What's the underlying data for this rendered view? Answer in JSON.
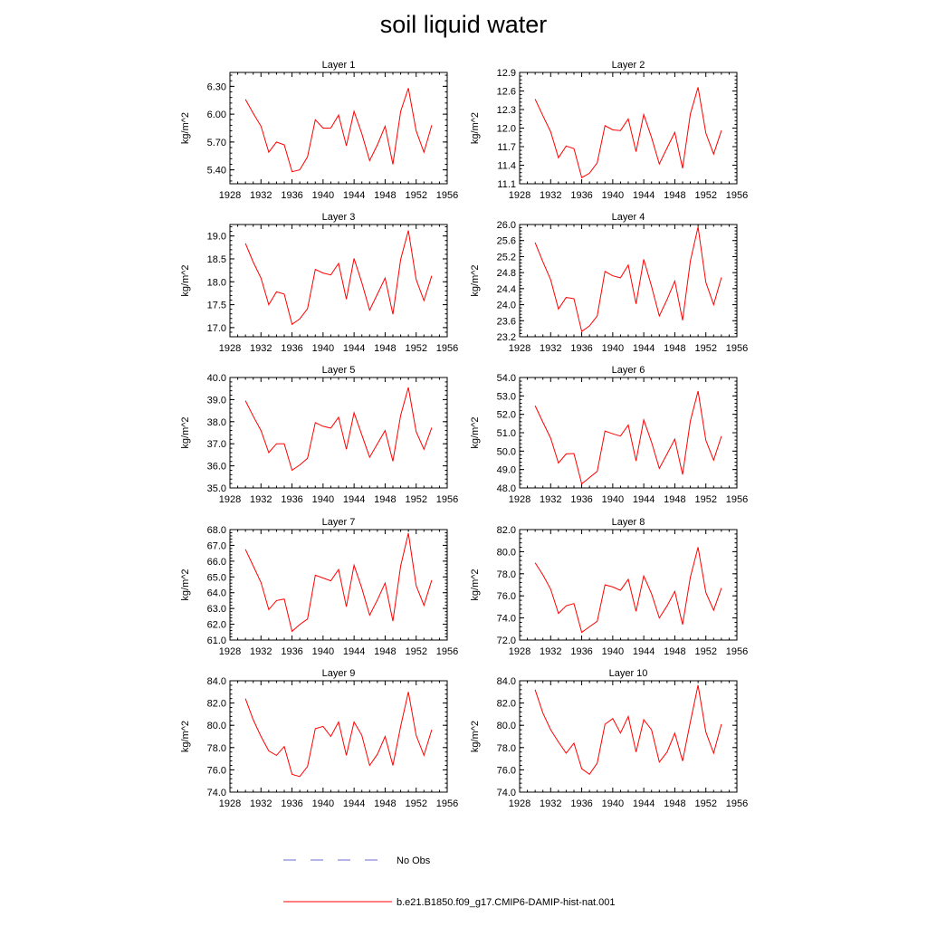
{
  "title": "soil liquid water",
  "ylabel": "kg/m^2",
  "x_ticks": [
    "1928",
    "1932",
    "1936",
    "1940",
    "1944",
    "1948",
    "1952",
    "1956"
  ],
  "legend": [
    {
      "label": "No Obs",
      "color": "#6b6bd6",
      "style": "dashed"
    },
    {
      "label": "b.e21.B1850.f09_g17.CMIP6-DAMIP-hist-nat.001",
      "color": "#ff0000",
      "style": "solid"
    }
  ],
  "chart_data": [
    {
      "type": "line",
      "title": "Layer 1",
      "ylabel": "kg/m^2",
      "xlim": [
        1928,
        1956
      ],
      "ylim": [
        5.25,
        6.45
      ],
      "y_ticks": [
        "5.40",
        "5.70",
        "6.00",
        "6.30"
      ],
      "series": [
        {
          "name": "b.e21.B1850.f09_g17.CMIP6-DAMIP-hist-nat.001",
          "color": "#ff0000",
          "x": [
            1930,
            1931,
            1932,
            1933,
            1934,
            1935,
            1936,
            1937,
            1938,
            1939,
            1940,
            1941,
            1942,
            1943,
            1944,
            1945,
            1946,
            1947,
            1948,
            1949,
            1950,
            1951,
            1952,
            1953,
            1954
          ],
          "y": [
            6.16,
            6.01,
            5.87,
            5.59,
            5.7,
            5.67,
            5.38,
            5.4,
            5.54,
            5.94,
            5.85,
            5.85,
            5.99,
            5.66,
            6.03,
            5.79,
            5.5,
            5.67,
            5.87,
            5.46,
            6.03,
            6.28,
            5.82,
            5.59,
            5.88
          ]
        }
      ]
    },
    {
      "type": "line",
      "title": "Layer 2",
      "ylabel": "kg/m^2",
      "xlim": [
        1928,
        1956
      ],
      "ylim": [
        11.1,
        12.9
      ],
      "y_ticks": [
        "11.1",
        "11.4",
        "11.7",
        "12.0",
        "12.3",
        "12.6",
        "12.9"
      ],
      "series": [
        {
          "name": "b.e21.B1850.f09_g17.CMIP6-DAMIP-hist-nat.001",
          "color": "#ff0000",
          "x": [
            1930,
            1931,
            1932,
            1933,
            1934,
            1935,
            1936,
            1937,
            1938,
            1939,
            1940,
            1941,
            1942,
            1943,
            1944,
            1945,
            1946,
            1947,
            1948,
            1949,
            1950,
            1951,
            1952,
            1953,
            1954
          ],
          "y": [
            12.47,
            12.2,
            11.94,
            11.52,
            11.71,
            11.67,
            11.2,
            11.27,
            11.44,
            12.04,
            11.97,
            11.96,
            12.15,
            11.62,
            12.22,
            11.85,
            11.42,
            11.68,
            11.93,
            11.35,
            12.23,
            12.66,
            11.92,
            11.58,
            11.96
          ]
        }
      ]
    },
    {
      "type": "line",
      "title": "Layer 3",
      "ylabel": "kg/m^2",
      "xlim": [
        1928,
        1956
      ],
      "ylim": [
        16.8,
        19.25
      ],
      "y_ticks": [
        "17.0",
        "17.5",
        "18.0",
        "18.5",
        "19.0"
      ],
      "series": [
        {
          "name": "b.e21.B1850.f09_g17.CMIP6-DAMIP-hist-nat.001",
          "color": "#ff0000",
          "x": [
            1930,
            1931,
            1932,
            1933,
            1934,
            1935,
            1936,
            1937,
            1938,
            1939,
            1940,
            1941,
            1942,
            1943,
            1944,
            1945,
            1946,
            1947,
            1948,
            1949,
            1950,
            1951,
            1952,
            1953,
            1954
          ],
          "y": [
            18.84,
            18.43,
            18.08,
            17.5,
            17.78,
            17.73,
            17.07,
            17.19,
            17.41,
            18.27,
            18.19,
            18.15,
            18.4,
            17.62,
            18.51,
            17.98,
            17.38,
            17.73,
            18.08,
            17.29,
            18.49,
            19.12,
            18.05,
            17.59,
            18.13
          ]
        }
      ]
    },
    {
      "type": "line",
      "title": "Layer 4",
      "ylabel": "kg/m^2",
      "xlim": [
        1928,
        1956
      ],
      "ylim": [
        23.2,
        26.0
      ],
      "y_ticks": [
        "23.2",
        "23.6",
        "24.0",
        "24.4",
        "24.8",
        "25.2",
        "25.6",
        "26.0"
      ],
      "series": [
        {
          "name": "b.e21.B1850.f09_g17.CMIP6-DAMIP-hist-nat.001",
          "color": "#ff0000",
          "x": [
            1930,
            1931,
            1932,
            1933,
            1934,
            1935,
            1936,
            1937,
            1938,
            1939,
            1940,
            1941,
            1942,
            1943,
            1944,
            1945,
            1946,
            1947,
            1948,
            1949,
            1950,
            1951,
            1952,
            1953,
            1954
          ],
          "y": [
            25.55,
            25.07,
            24.62,
            23.89,
            24.18,
            24.15,
            23.33,
            23.47,
            23.72,
            24.83,
            24.72,
            24.67,
            24.99,
            24.02,
            25.13,
            24.46,
            23.72,
            24.13,
            24.59,
            23.61,
            25.09,
            25.94,
            24.56,
            24.0,
            24.68
          ]
        }
      ]
    },
    {
      "type": "line",
      "title": "Layer 5",
      "ylabel": "kg/m^2",
      "xlim": [
        1928,
        1956
      ],
      "ylim": [
        35.0,
        40.0
      ],
      "y_ticks": [
        "35.0",
        "36.0",
        "37.0",
        "38.0",
        "39.0",
        "40.0"
      ],
      "series": [
        {
          "name": "b.e21.B1850.f09_g17.CMIP6-DAMIP-hist-nat.001",
          "color": "#ff0000",
          "x": [
            1930,
            1931,
            1932,
            1933,
            1934,
            1935,
            1936,
            1937,
            1938,
            1939,
            1940,
            1941,
            1942,
            1943,
            1944,
            1945,
            1946,
            1947,
            1948,
            1949,
            1950,
            1951,
            1952,
            1953,
            1954
          ],
          "y": [
            38.95,
            38.25,
            37.6,
            36.6,
            37.0,
            37.0,
            35.8,
            36.04,
            36.34,
            37.96,
            37.79,
            37.71,
            38.2,
            36.75,
            38.4,
            37.4,
            36.39,
            37.0,
            37.6,
            36.21,
            38.29,
            39.55,
            37.55,
            36.75,
            37.73
          ]
        }
      ]
    },
    {
      "type": "line",
      "title": "Layer 6",
      "ylabel": "kg/m^2",
      "xlim": [
        1928,
        1956
      ],
      "ylim": [
        48.0,
        54.0
      ],
      "y_ticks": [
        "48.0",
        "49.0",
        "50.0",
        "51.0",
        "52.0",
        "53.0",
        "54.0"
      ],
      "series": [
        {
          "name": "b.e21.B1850.f09_g17.CMIP6-DAMIP-hist-nat.001",
          "color": "#ff0000",
          "x": [
            1930,
            1931,
            1932,
            1933,
            1934,
            1935,
            1936,
            1937,
            1938,
            1939,
            1940,
            1941,
            1942,
            1943,
            1944,
            1945,
            1946,
            1947,
            1948,
            1949,
            1950,
            1951,
            1952,
            1953,
            1954
          ],
          "y": [
            52.47,
            51.57,
            50.7,
            49.35,
            49.85,
            49.87,
            48.22,
            48.56,
            48.9,
            51.09,
            50.94,
            50.82,
            51.42,
            49.47,
            51.7,
            50.49,
            49.06,
            49.85,
            50.65,
            48.73,
            51.64,
            53.26,
            50.59,
            49.51,
            50.81
          ]
        }
      ]
    },
    {
      "type": "line",
      "title": "Layer 7",
      "ylabel": "kg/m^2",
      "xlim": [
        1928,
        1956
      ],
      "ylim": [
        61.0,
        68.0
      ],
      "y_ticks": [
        "61.0",
        "62.0",
        "63.0",
        "64.0",
        "65.0",
        "66.0",
        "67.0",
        "68.0"
      ],
      "series": [
        {
          "name": "b.e21.B1850.f09_g17.CMIP6-DAMIP-hist-nat.001",
          "color": "#ff0000",
          "x": [
            1930,
            1931,
            1932,
            1933,
            1934,
            1935,
            1936,
            1937,
            1938,
            1939,
            1940,
            1941,
            1942,
            1943,
            1944,
            1945,
            1946,
            1947,
            1948,
            1949,
            1950,
            1951,
            1952,
            1953,
            1954
          ],
          "y": [
            66.75,
            65.7,
            64.65,
            62.93,
            63.5,
            63.6,
            61.55,
            61.98,
            62.33,
            65.11,
            64.93,
            64.75,
            65.47,
            63.11,
            65.74,
            64.28,
            62.58,
            63.54,
            64.61,
            62.2,
            65.7,
            67.77,
            64.45,
            63.2,
            64.79
          ]
        }
      ]
    },
    {
      "type": "line",
      "title": "Layer 8",
      "ylabel": "kg/m^2",
      "xlim": [
        1928,
        1956
      ],
      "ylim": [
        72.0,
        82.0
      ],
      "y_ticks": [
        "72.0",
        "74.0",
        "76.0",
        "78.0",
        "80.0",
        "82.0"
      ],
      "series": [
        {
          "name": "b.e21.B1850.f09_g17.CMIP6-DAMIP-hist-nat.001",
          "color": "#ff0000",
          "x": [
            1930,
            1931,
            1932,
            1933,
            1934,
            1935,
            1936,
            1937,
            1938,
            1939,
            1940,
            1941,
            1942,
            1943,
            1944,
            1945,
            1946,
            1947,
            1948,
            1949,
            1950,
            1951,
            1952,
            1953,
            1954
          ],
          "y": [
            79.0,
            77.9,
            76.6,
            74.4,
            75.1,
            75.3,
            72.7,
            73.2,
            73.7,
            77.0,
            76.8,
            76.5,
            77.5,
            74.6,
            77.8,
            76.2,
            74.0,
            75.1,
            76.4,
            73.4,
            77.7,
            80.4,
            76.3,
            74.7,
            76.7
          ]
        }
      ]
    },
    {
      "type": "line",
      "title": "Layer 9",
      "ylabel": "kg/m^2",
      "xlim": [
        1928,
        1956
      ],
      "ylim": [
        74.0,
        84.0
      ],
      "y_ticks": [
        "74.0",
        "76.0",
        "78.0",
        "80.0",
        "82.0",
        "84.0"
      ],
      "series": [
        {
          "name": "b.e21.B1850.f09_g17.CMIP6-DAMIP-hist-nat.001",
          "color": "#ff0000",
          "x": [
            1930,
            1931,
            1932,
            1933,
            1934,
            1935,
            1936,
            1937,
            1938,
            1939,
            1940,
            1941,
            1942,
            1943,
            1944,
            1945,
            1946,
            1947,
            1948,
            1949,
            1950,
            1951,
            1952,
            1953,
            1954
          ],
          "y": [
            82.4,
            80.5,
            79.0,
            77.7,
            77.3,
            78.1,
            75.6,
            75.4,
            76.3,
            79.7,
            79.9,
            79.0,
            80.3,
            77.3,
            80.3,
            79.1,
            76.4,
            77.4,
            79.0,
            76.4,
            79.9,
            83.0,
            79.1,
            77.3,
            79.6
          ]
        }
      ]
    },
    {
      "type": "line",
      "title": "Layer 10",
      "ylabel": "kg/m^2",
      "xlim": [
        1928,
        1956
      ],
      "ylim": [
        74.0,
        84.0
      ],
      "y_ticks": [
        "74.0",
        "76.0",
        "78.0",
        "80.0",
        "82.0",
        "84.0"
      ],
      "series": [
        {
          "name": "b.e21.B1850.f09_g17.CMIP6-DAMIP-hist-nat.001",
          "color": "#ff0000",
          "x": [
            1930,
            1931,
            1932,
            1933,
            1934,
            1935,
            1936,
            1937,
            1938,
            1939,
            1940,
            1941,
            1942,
            1943,
            1944,
            1945,
            1946,
            1947,
            1948,
            1949,
            1950,
            1951,
            1952,
            1953,
            1954
          ],
          "y": [
            83.2,
            81.1,
            79.6,
            78.5,
            77.5,
            78.4,
            76.1,
            75.6,
            76.6,
            80.1,
            80.6,
            79.3,
            80.8,
            77.6,
            80.5,
            79.6,
            76.7,
            77.6,
            79.3,
            76.8,
            80.3,
            83.6,
            79.4,
            77.5,
            80.1
          ]
        }
      ]
    }
  ]
}
